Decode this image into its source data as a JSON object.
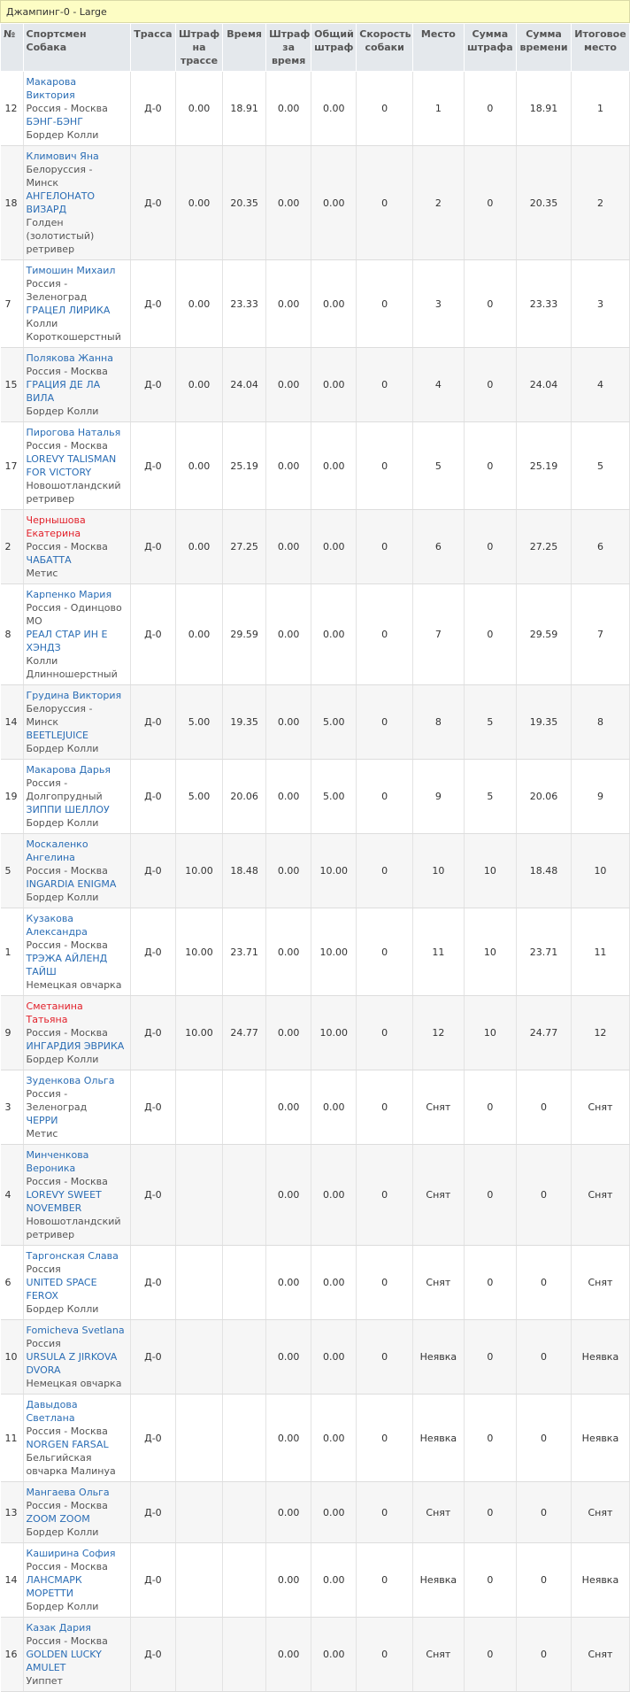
{
  "caption": "Джампинг-0 - Large",
  "columns": {
    "num": "№",
    "athlete": "Спортсмен",
    "dog": "Собака",
    "track": "Трасса",
    "penalty_track": "Штраф на трассе",
    "time": "Время",
    "penalty_time": "Штраф за время",
    "total_penalty": "Общий штраф",
    "speed": "Скорость собаки",
    "place": "Место",
    "sum_penalty": "Сумма штрафа",
    "sum_time": "Сумма времени",
    "final_place": "Итоговое место"
  },
  "rows": [
    {
      "num": "12",
      "athlete": "Макарова Виктория",
      "red": false,
      "region": "Россия - Москва",
      "dog": "БЭНГ-БЭНГ",
      "breed": "Бордер Колли",
      "track": "Д-0",
      "penalty_track": "0.00",
      "time": "18.91",
      "penalty_time": "0.00",
      "total_penalty": "0.00",
      "speed": "0",
      "place": "1",
      "sum_penalty": "0",
      "sum_time": "18.91",
      "final_place": "1",
      "h": 65
    },
    {
      "num": "18",
      "athlete": "Климович Яна",
      "red": false,
      "region": "Белоруссия - Минск",
      "dog": "АНГЕЛОНАТО ВИЗАРД",
      "breed": "Голден (золотистый) ретривер",
      "track": "Д-0",
      "penalty_track": "0.00",
      "time": "20.35",
      "penalty_time": "0.00",
      "total_penalty": "0.00",
      "speed": "0",
      "place": "2",
      "sum_penalty": "0",
      "sum_time": "20.35",
      "final_place": "2",
      "h": 79
    },
    {
      "num": "7",
      "athlete": "Тимошин Михаил",
      "red": false,
      "region": "Россия - Зеленоград",
      "dog": "ГРАЦЕЛ ЛИРИКА",
      "breed": "Колли Короткошерстный",
      "track": "Д-0",
      "penalty_track": "0.00",
      "time": "23.33",
      "penalty_time": "0.00",
      "total_penalty": "0.00",
      "speed": "0",
      "place": "3",
      "sum_penalty": "0",
      "sum_time": "23.33",
      "final_place": "3",
      "h": 79
    },
    {
      "num": "15",
      "athlete": "Полякова Жанна",
      "red": false,
      "region": "Россия - Москва",
      "dog": "ГРАЦИЯ ДЕ ЛА ВИЛА",
      "breed": "Бордер Колли",
      "track": "Д-0",
      "penalty_track": "0.00",
      "time": "24.04",
      "penalty_time": "0.00",
      "total_penalty": "0.00",
      "speed": "0",
      "place": "4",
      "sum_penalty": "0",
      "sum_time": "24.04",
      "final_place": "4",
      "h": 65
    },
    {
      "num": "17",
      "athlete": "Пирогова Наталья",
      "red": false,
      "region": "Россия - Москва",
      "dog": "LOREVY TALISMAN FOR VICTORY",
      "breed": "Новошотландский ретривер",
      "track": "Д-0",
      "penalty_track": "0.00",
      "time": "25.19",
      "penalty_time": "0.00",
      "total_penalty": "0.00",
      "speed": "0",
      "place": "5",
      "sum_penalty": "0",
      "sum_time": "25.19",
      "final_place": "5",
      "h": 93
    },
    {
      "num": "2",
      "athlete": "Чернышова Екатерина",
      "red": true,
      "region": "Россия - Москва",
      "dog": "ЧАБАТТА",
      "breed": "Метис",
      "track": "Д-0",
      "penalty_track": "0.00",
      "time": "27.25",
      "penalty_time": "0.00",
      "total_penalty": "0.00",
      "speed": "0",
      "place": "6",
      "sum_penalty": "0",
      "sum_time": "27.25",
      "final_place": "6",
      "h": 79
    },
    {
      "num": "8",
      "athlete": "Карпенко Мария",
      "red": false,
      "region": "Россия - Одинцово МО",
      "dog": "РЕАЛ СТАР ИН Е ХЭНДЗ",
      "breed": "Колли Длинношерстный",
      "track": "Д-0",
      "penalty_track": "0.00",
      "time": "29.59",
      "penalty_time": "0.00",
      "total_penalty": "0.00",
      "speed": "0",
      "place": "7",
      "sum_penalty": "0",
      "sum_time": "29.59",
      "final_place": "7",
      "h": 93
    },
    {
      "num": "14",
      "athlete": "Грудина Виктория",
      "red": false,
      "region": "Белоруссия - Минск",
      "dog": "BEETLEJUICE",
      "breed": "Бордер Колли",
      "track": "Д-0",
      "penalty_track": "5.00",
      "time": "19.35",
      "penalty_time": "0.00",
      "total_penalty": "5.00",
      "speed": "0",
      "place": "8",
      "sum_penalty": "5",
      "sum_time": "19.35",
      "final_place": "8",
      "h": 65
    },
    {
      "num": "19",
      "athlete": "Макарова Дарья",
      "red": false,
      "region": "Россия - Долгопрудный",
      "dog": "ЗИППИ ШЕЛЛОУ",
      "breed": "Бордер Колли",
      "track": "Д-0",
      "penalty_track": "5.00",
      "time": "20.06",
      "penalty_time": "0.00",
      "total_penalty": "5.00",
      "speed": "0",
      "place": "9",
      "sum_penalty": "5",
      "sum_time": "20.06",
      "final_place": "9",
      "h": 79
    },
    {
      "num": "5",
      "athlete": "Москаленко Ангелина",
      "red": false,
      "region": "Россия - Москва",
      "dog": "INGARDIA ENIGMA",
      "breed": "Бордер Колли",
      "track": "Д-0",
      "penalty_track": "10.00",
      "time": "18.48",
      "penalty_time": "0.00",
      "total_penalty": "10.00",
      "speed": "0",
      "place": "10",
      "sum_penalty": "10",
      "sum_time": "18.48",
      "final_place": "10",
      "h": 65
    },
    {
      "num": "1",
      "athlete": "Кузакова Александра",
      "red": false,
      "region": "Россия - Москва",
      "dog": "ТРЭЖА АЙЛЕНД ТАЙШ",
      "breed": "Немецкая овчарка",
      "track": "Д-0",
      "penalty_track": "10.00",
      "time": "23.71",
      "penalty_time": "0.00",
      "total_penalty": "10.00",
      "speed": "0",
      "place": "11",
      "sum_penalty": "10",
      "sum_time": "23.71",
      "final_place": "11",
      "h": 79
    },
    {
      "num": "9",
      "athlete": "Сметанина Татьяна",
      "red": true,
      "region": "Россия - Москва",
      "dog": "ИНГАРДИЯ ЭВРИКА",
      "breed": "Бордер Колли",
      "track": "Д-0",
      "penalty_track": "10.00",
      "time": "24.77",
      "penalty_time": "0.00",
      "total_penalty": "10.00",
      "speed": "0",
      "place": "12",
      "sum_penalty": "10",
      "sum_time": "24.77",
      "final_place": "12",
      "h": 65
    },
    {
      "num": "3",
      "athlete": "Зуденкова Ольга",
      "red": false,
      "region": "Россия - Зеленоград",
      "dog": "ЧЕРРИ",
      "breed": "Метис",
      "track": "Д-0",
      "penalty_track": "",
      "time": "",
      "penalty_time": "0.00",
      "total_penalty": "0.00",
      "speed": "0",
      "place": "Снят",
      "sum_penalty": "0",
      "sum_time": "0",
      "final_place": "Снят",
      "h": 65
    },
    {
      "num": "4",
      "athlete": "Минченкова Вероника",
      "red": false,
      "region": "Россия - Москва",
      "dog": "LOREVY SWEET NOVEMBER",
      "breed": "Новошотландский ретривер",
      "track": "Д-0",
      "penalty_track": "",
      "time": "",
      "penalty_time": "0.00",
      "total_penalty": "0.00",
      "speed": "0",
      "place": "Снят",
      "sum_penalty": "0",
      "sum_time": "0",
      "final_place": "Снят",
      "h": 93
    },
    {
      "num": "6",
      "athlete": "Таргонская Слава",
      "red": false,
      "region": "Россия",
      "dog": "UNITED SPACE FEROX",
      "breed": "Бордер Колли",
      "track": "Д-0",
      "penalty_track": "",
      "time": "",
      "penalty_time": "0.00",
      "total_penalty": "0.00",
      "speed": "0",
      "place": "Снят",
      "sum_penalty": "0",
      "sum_time": "0",
      "final_place": "Снят",
      "h": 65
    },
    {
      "num": "10",
      "athlete": "Fomicheva Svetlana",
      "red": false,
      "region": "Россия",
      "dog": "URSULA Z JIRKOVA DVORA",
      "breed": "Немецкая овчарка",
      "track": "Д-0",
      "penalty_track": "",
      "time": "",
      "penalty_time": "0.00",
      "total_penalty": "0.00",
      "speed": "0",
      "place": "Неявка",
      "sum_penalty": "0",
      "sum_time": "0",
      "final_place": "Неявка",
      "h": 79
    },
    {
      "num": "11",
      "athlete": "Давыдова Светлана",
      "red": false,
      "region": "Россия - Москва",
      "dog": "NORGEN FARSAL",
      "breed": "Бельгийская овчарка Малинуа",
      "track": "Д-0",
      "penalty_track": "",
      "time": "",
      "penalty_time": "0.00",
      "total_penalty": "0.00",
      "speed": "0",
      "place": "Неявка",
      "sum_penalty": "0",
      "sum_time": "0",
      "final_place": "Неявка",
      "h": 79
    },
    {
      "num": "13",
      "athlete": "Мангаева Ольга",
      "red": false,
      "region": "Россия - Москва",
      "dog": "ZOOM ZOOM",
      "breed": "Бордер Колли",
      "track": "Д-0",
      "penalty_track": "",
      "time": "",
      "penalty_time": "0.00",
      "total_penalty": "0.00",
      "speed": "0",
      "place": "Снят",
      "sum_penalty": "0",
      "sum_time": "0",
      "final_place": "Снят",
      "h": 65
    },
    {
      "num": "14",
      "athlete": "Каширина София",
      "red": false,
      "region": "Россия - Москва",
      "dog": "ЛАНСМАРК МОРЕТТИ",
      "breed": "Бордер Колли",
      "track": "Д-0",
      "penalty_track": "",
      "time": "",
      "penalty_time": "0.00",
      "total_penalty": "0.00",
      "speed": "0",
      "place": "Неявка",
      "sum_penalty": "0",
      "sum_time": "0",
      "final_place": "Неявка",
      "h": 65
    },
    {
      "num": "16",
      "athlete": "Казак Дария",
      "red": false,
      "region": "Россия - Москва",
      "dog": "GOLDEN LUCKY AMULET",
      "breed": "Уиппет",
      "track": "Д-0",
      "penalty_track": "",
      "time": "",
      "penalty_time": "0.00",
      "total_penalty": "0.00",
      "speed": "0",
      "place": "Снят",
      "sum_penalty": "0",
      "sum_time": "0",
      "final_place": "Снят",
      "h": 79
    }
  ]
}
